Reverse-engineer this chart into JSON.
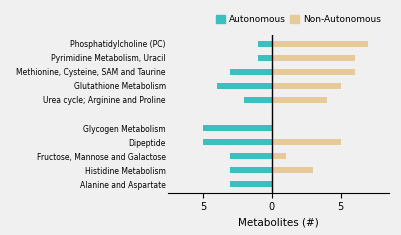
{
  "categories": [
    "Phosphatidylcholine (PC)",
    "Pyrimidine Metabolism, Uracil",
    "Methionine, Cysteine, SAM and Taurine",
    "Glutathione Metabolism",
    "Urea cycle; Arginine and Proline",
    "",
    "Glycogen Metabolism",
    "Dipeptide",
    "Fructose, Mannose and Galactose",
    "Histidine Metabolism",
    "Alanine and Aspartate"
  ],
  "autonomous_values": [
    -1,
    -1,
    -3,
    -4,
    -2,
    0,
    -5,
    -5,
    -3,
    -3,
    -3
  ],
  "non_autonomous_values": [
    7,
    6,
    6,
    5,
    4,
    0,
    0,
    5,
    1,
    3,
    0
  ],
  "autonomous_color": "#3BBFBF",
  "non_autonomous_color": "#E8C99A",
  "xlabel": "Metabolites (#)",
  "xlim": [
    -7.5,
    8.5
  ],
  "xticks": [
    -5,
    0,
    5
  ],
  "xticklabels": [
    "5",
    "0",
    "5"
  ],
  "legend_labels": [
    "Autonomous",
    "Non-Autonomous"
  ],
  "figsize": [
    4.01,
    2.35
  ],
  "dpi": 100,
  "bg_color": "#F0F0F0"
}
